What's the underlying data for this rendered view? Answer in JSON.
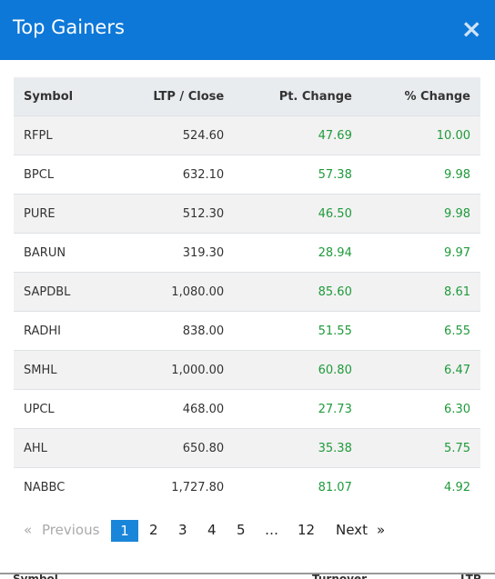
{
  "header": {
    "title": "Top Gainers",
    "close": "×"
  },
  "table": {
    "columns": [
      "Symbol",
      "LTP / Close",
      "Pt. Change",
      "% Change"
    ],
    "rows": [
      [
        "RFPL",
        "524.60",
        "47.69",
        "10.00"
      ],
      [
        "BPCL",
        "632.10",
        "57.38",
        "9.98"
      ],
      [
        "PURE",
        "512.30",
        "46.50",
        "9.98"
      ],
      [
        "BARUN",
        "319.30",
        "28.94",
        "9.97"
      ],
      [
        "SAPDBL",
        "1,080.00",
        "85.60",
        "8.61"
      ],
      [
        "RADHI",
        "838.00",
        "51.55",
        "6.55"
      ],
      [
        "SMHL",
        "1,000.00",
        "60.80",
        "6.47"
      ],
      [
        "UPCL",
        "468.00",
        "27.73",
        "6.30"
      ],
      [
        "AHL",
        "650.80",
        "35.38",
        "5.75"
      ],
      [
        "NABBC",
        "1,727.80",
        "81.07",
        "4.92"
      ]
    ]
  },
  "pagination": {
    "first": "«",
    "previous": "Previous",
    "pages": [
      "1",
      "2",
      "3",
      "4",
      "5",
      "…",
      "12"
    ],
    "next": "Next",
    "last": "»"
  },
  "background": {
    "headers": [
      "Symbol",
      "Turnover",
      "LTP"
    ]
  }
}
